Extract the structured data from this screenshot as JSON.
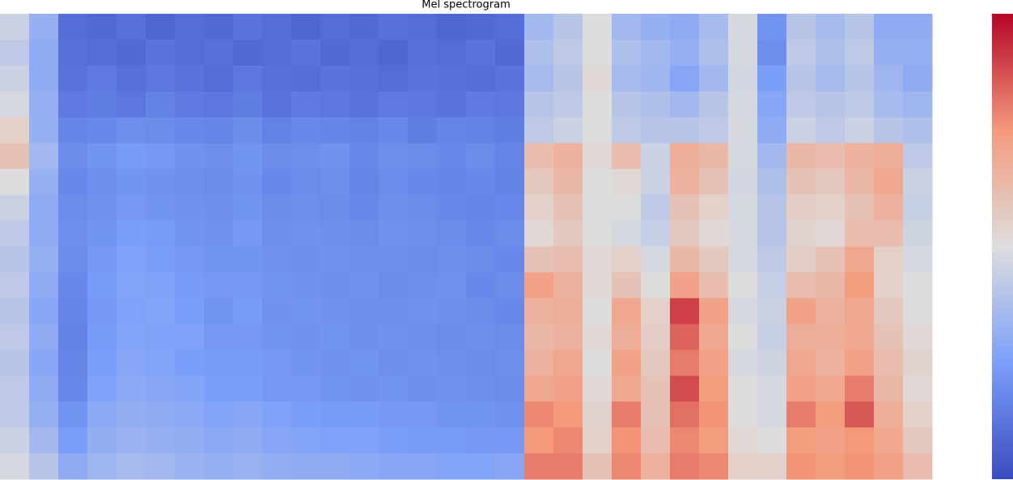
{
  "chart_data": {
    "type": "heatmap",
    "title": "Mel spectrogram",
    "colormap": "coolwarm",
    "zlim": [
      0,
      1
    ],
    "colorbar": true,
    "z": [
      [
        0.45,
        0.32,
        0.1,
        0.09,
        0.11,
        0.08,
        0.1,
        0.09,
        0.12,
        0.1,
        0.08,
        0.1,
        0.09,
        0.11,
        0.1,
        0.08,
        0.09,
        0.1,
        0.35,
        0.4,
        0.5,
        0.35,
        0.32,
        0.3,
        0.36,
        0.48,
        0.22,
        0.4,
        0.36,
        0.4,
        0.3,
        0.3
      ],
      [
        0.42,
        0.3,
        0.11,
        0.1,
        0.09,
        0.12,
        0.1,
        0.11,
        0.09,
        0.1,
        0.12,
        0.09,
        0.1,
        0.08,
        0.11,
        0.1,
        0.12,
        0.09,
        0.38,
        0.42,
        0.5,
        0.38,
        0.35,
        0.32,
        0.38,
        0.48,
        0.2,
        0.42,
        0.38,
        0.42,
        0.32,
        0.32
      ],
      [
        0.45,
        0.3,
        0.12,
        0.14,
        0.11,
        0.13,
        0.12,
        0.1,
        0.13,
        0.11,
        0.1,
        0.12,
        0.11,
        0.1,
        0.12,
        0.11,
        0.1,
        0.12,
        0.36,
        0.4,
        0.52,
        0.36,
        0.34,
        0.28,
        0.35,
        0.47,
        0.25,
        0.4,
        0.36,
        0.4,
        0.34,
        0.3
      ],
      [
        0.48,
        0.32,
        0.14,
        0.15,
        0.13,
        0.16,
        0.14,
        0.13,
        0.15,
        0.12,
        0.14,
        0.13,
        0.12,
        0.14,
        0.13,
        0.12,
        0.14,
        0.13,
        0.4,
        0.42,
        0.5,
        0.4,
        0.38,
        0.35,
        0.4,
        0.48,
        0.28,
        0.42,
        0.4,
        0.42,
        0.36,
        0.34
      ],
      [
        0.55,
        0.32,
        0.17,
        0.18,
        0.2,
        0.19,
        0.18,
        0.17,
        0.19,
        0.16,
        0.18,
        0.17,
        0.16,
        0.18,
        0.15,
        0.17,
        0.16,
        0.15,
        0.42,
        0.45,
        0.5,
        0.42,
        0.4,
        0.4,
        0.42,
        0.48,
        0.3,
        0.45,
        0.42,
        0.45,
        0.4,
        0.38
      ],
      [
        0.6,
        0.35,
        0.19,
        0.22,
        0.24,
        0.23,
        0.21,
        0.2,
        0.22,
        0.19,
        0.2,
        0.21,
        0.18,
        0.2,
        0.19,
        0.18,
        0.19,
        0.17,
        0.62,
        0.66,
        0.52,
        0.62,
        0.45,
        0.68,
        0.64,
        0.48,
        0.35,
        0.64,
        0.62,
        0.66,
        0.68,
        0.42
      ],
      [
        0.5,
        0.32,
        0.18,
        0.2,
        0.22,
        0.21,
        0.2,
        0.19,
        0.21,
        0.18,
        0.19,
        0.2,
        0.17,
        0.19,
        0.18,
        0.17,
        0.18,
        0.16,
        0.58,
        0.64,
        0.5,
        0.52,
        0.45,
        0.66,
        0.6,
        0.47,
        0.38,
        0.6,
        0.58,
        0.64,
        0.7,
        0.45
      ],
      [
        0.45,
        0.3,
        0.19,
        0.21,
        0.23,
        0.22,
        0.21,
        0.2,
        0.22,
        0.19,
        0.2,
        0.19,
        0.18,
        0.2,
        0.19,
        0.18,
        0.17,
        0.18,
        0.55,
        0.6,
        0.5,
        0.5,
        0.42,
        0.6,
        0.55,
        0.48,
        0.4,
        0.56,
        0.55,
        0.6,
        0.66,
        0.44
      ],
      [
        0.42,
        0.3,
        0.2,
        0.22,
        0.25,
        0.24,
        0.22,
        0.21,
        0.23,
        0.2,
        0.21,
        0.2,
        0.19,
        0.21,
        0.2,
        0.19,
        0.18,
        0.19,
        0.52,
        0.58,
        0.5,
        0.48,
        0.44,
        0.58,
        0.52,
        0.48,
        0.4,
        0.54,
        0.52,
        0.62,
        0.62,
        0.46
      ],
      [
        0.4,
        0.32,
        0.19,
        0.23,
        0.26,
        0.25,
        0.23,
        0.22,
        0.22,
        0.21,
        0.2,
        0.21,
        0.2,
        0.2,
        0.19,
        0.2,
        0.19,
        0.18,
        0.6,
        0.62,
        0.52,
        0.55,
        0.48,
        0.64,
        0.58,
        0.48,
        0.42,
        0.56,
        0.6,
        0.7,
        0.55,
        0.48
      ],
      [
        0.42,
        0.3,
        0.18,
        0.24,
        0.27,
        0.26,
        0.24,
        0.23,
        0.23,
        0.22,
        0.21,
        0.2,
        0.21,
        0.19,
        0.2,
        0.21,
        0.18,
        0.19,
        0.72,
        0.66,
        0.52,
        0.6,
        0.5,
        0.72,
        0.62,
        0.5,
        0.44,
        0.62,
        0.64,
        0.74,
        0.55,
        0.5
      ],
      [
        0.4,
        0.28,
        0.17,
        0.23,
        0.26,
        0.27,
        0.25,
        0.22,
        0.24,
        0.21,
        0.22,
        0.21,
        0.2,
        0.2,
        0.21,
        0.2,
        0.19,
        0.18,
        0.66,
        0.68,
        0.5,
        0.7,
        0.55,
        0.9,
        0.72,
        0.48,
        0.45,
        0.72,
        0.66,
        0.7,
        0.58,
        0.5
      ],
      [
        0.42,
        0.3,
        0.16,
        0.24,
        0.27,
        0.26,
        0.26,
        0.23,
        0.23,
        0.22,
        0.21,
        0.22,
        0.2,
        0.21,
        0.2,
        0.19,
        0.2,
        0.19,
        0.64,
        0.66,
        0.52,
        0.68,
        0.56,
        0.84,
        0.7,
        0.5,
        0.44,
        0.68,
        0.68,
        0.7,
        0.6,
        0.52
      ],
      [
        0.4,
        0.28,
        0.17,
        0.25,
        0.28,
        0.27,
        0.25,
        0.24,
        0.24,
        0.23,
        0.22,
        0.21,
        0.22,
        0.2,
        0.21,
        0.2,
        0.19,
        0.2,
        0.66,
        0.7,
        0.5,
        0.72,
        0.58,
        0.8,
        0.72,
        0.48,
        0.46,
        0.7,
        0.66,
        0.72,
        0.62,
        0.54
      ],
      [
        0.42,
        0.3,
        0.18,
        0.26,
        0.29,
        0.28,
        0.27,
        0.25,
        0.25,
        0.23,
        0.23,
        0.22,
        0.21,
        0.22,
        0.2,
        0.21,
        0.2,
        0.19,
        0.7,
        0.72,
        0.52,
        0.7,
        0.6,
        0.88,
        0.74,
        0.5,
        0.48,
        0.72,
        0.7,
        0.8,
        0.64,
        0.52
      ],
      [
        0.42,
        0.32,
        0.22,
        0.29,
        0.31,
        0.3,
        0.29,
        0.27,
        0.28,
        0.26,
        0.25,
        0.24,
        0.24,
        0.23,
        0.23,
        0.22,
        0.22,
        0.21,
        0.78,
        0.75,
        0.54,
        0.8,
        0.6,
        0.82,
        0.76,
        0.5,
        0.48,
        0.8,
        0.74,
        0.86,
        0.68,
        0.55
      ],
      [
        0.45,
        0.35,
        0.25,
        0.31,
        0.33,
        0.32,
        0.31,
        0.29,
        0.3,
        0.28,
        0.27,
        0.26,
        0.26,
        0.25,
        0.24,
        0.24,
        0.23,
        0.23,
        0.75,
        0.78,
        0.55,
        0.76,
        0.62,
        0.78,
        0.74,
        0.52,
        0.5,
        0.74,
        0.72,
        0.75,
        0.7,
        0.58
      ],
      [
        0.48,
        0.4,
        0.3,
        0.34,
        0.36,
        0.35,
        0.33,
        0.32,
        0.33,
        0.31,
        0.3,
        0.3,
        0.29,
        0.28,
        0.28,
        0.27,
        0.27,
        0.28,
        0.8,
        0.8,
        0.6,
        0.78,
        0.66,
        0.8,
        0.78,
        0.55,
        0.55,
        0.76,
        0.74,
        0.76,
        0.72,
        0.62
      ]
    ]
  }
}
